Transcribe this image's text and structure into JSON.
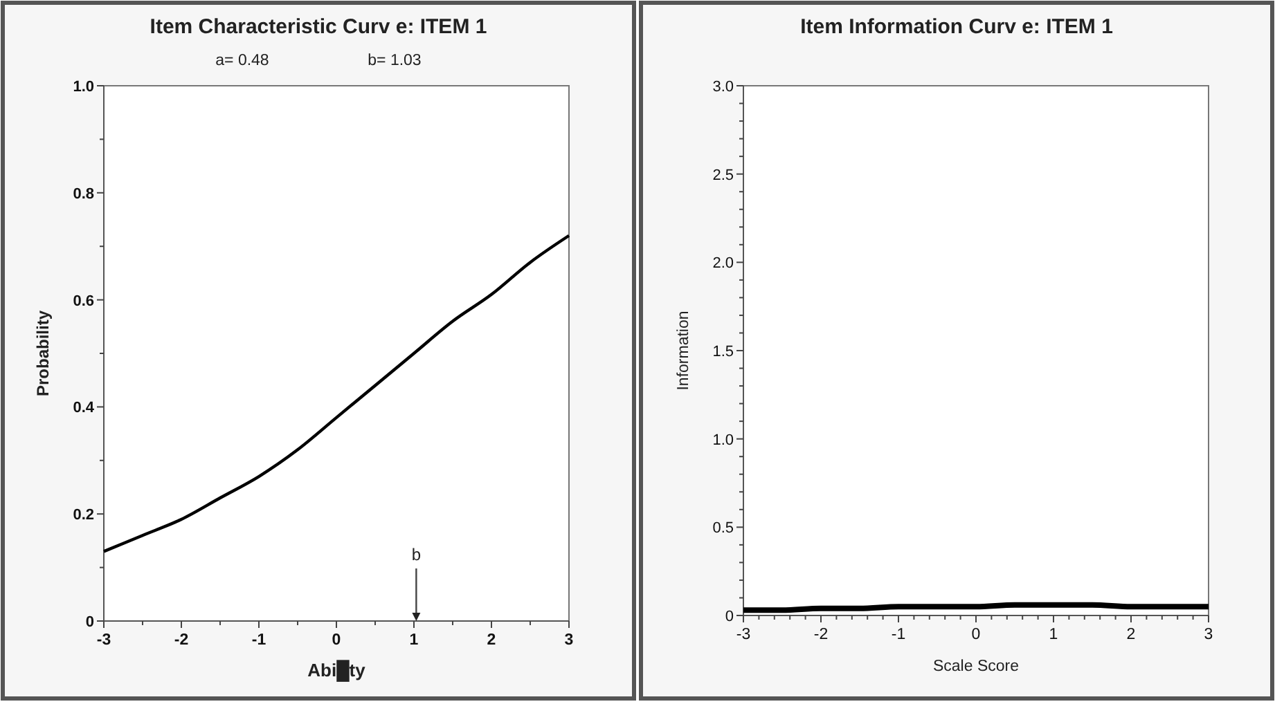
{
  "chart_data": [
    {
      "type": "line",
      "title": "Item Characteristic Curv e: ITEM 1",
      "xlabel": "Abi█ty",
      "ylabel": "Probability",
      "annotations": [
        "a= 0.48",
        "b= 1.03"
      ],
      "ref_lines": [
        {
          "axis": "x",
          "value": 1.03,
          "label": "b"
        }
      ],
      "x": [
        -3,
        -2.5,
        -2,
        -1.5,
        -1,
        -0.5,
        0,
        0.5,
        1,
        1.5,
        2,
        2.5,
        3
      ],
      "series": [
        {
          "color": "#000000",
          "values": [
            0.13,
            0.16,
            0.19,
            0.23,
            0.27,
            0.32,
            0.38,
            0.44,
            0.5,
            0.56,
            0.61,
            0.67,
            0.72
          ]
        }
      ],
      "xlim": [
        -3,
        3
      ],
      "ylim": [
        0,
        1
      ],
      "xticks": [
        -3,
        {
          "value": -2.5,
          "label": null
        },
        -2,
        {
          "value": -1.5,
          "label": null
        },
        -1,
        {
          "value": -0.5,
          "label": null
        },
        0,
        {
          "value": 0.5,
          "label": null
        },
        1,
        {
          "value": 1.5,
          "label": null
        },
        2,
        {
          "value": 2.5,
          "label": null
        },
        3
      ],
      "yticks": [
        0,
        {
          "value": 0.1,
          "label": null
        },
        0.2,
        {
          "value": 0.3,
          "label": null
        },
        0.4,
        {
          "value": 0.5,
          "label": null
        },
        0.6,
        {
          "value": 0.7,
          "label": null
        },
        0.8,
        {
          "value": 0.9,
          "label": null
        },
        {
          "value": 1,
          "label": "1.0"
        }
      ],
      "grid": false,
      "marker": "none",
      "line_style": "solid"
    },
    {
      "type": "line",
      "title": "Item Information Curv e: ITEM 1",
      "xlabel": "Scale Score",
      "ylabel": "Information",
      "x": [
        -3,
        -2.5,
        -2,
        -1.5,
        -1,
        -0.5,
        0,
        0.5,
        1,
        1.5,
        2,
        2.5,
        3
      ],
      "series": [
        {
          "color": "#000000",
          "values": [
            0.03,
            0.03,
            0.04,
            0.04,
            0.05,
            0.05,
            0.05,
            0.06,
            0.06,
            0.06,
            0.05,
            0.05,
            0.05
          ]
        }
      ],
      "xlim": [
        -3,
        3
      ],
      "ylim": [
        0,
        3
      ],
      "xticks": [
        -3,
        {
          "value": -2.8,
          "label": null
        },
        {
          "value": -2.6,
          "label": null
        },
        {
          "value": -2.4,
          "label": null
        },
        {
          "value": -2.2,
          "label": null
        },
        -2,
        {
          "value": -1.8,
          "label": null
        },
        {
          "value": -1.6,
          "label": null
        },
        {
          "value": -1.4,
          "label": null
        },
        {
          "value": -1.2,
          "label": null
        },
        -1,
        {
          "value": -0.8,
          "label": null
        },
        {
          "value": -0.6,
          "label": null
        },
        {
          "value": -0.4,
          "label": null
        },
        {
          "value": -0.2,
          "label": null
        },
        0,
        {
          "value": 0.2,
          "label": null
        },
        {
          "value": 0.4,
          "label": null
        },
        {
          "value": 0.6,
          "label": null
        },
        {
          "value": 0.8,
          "label": null
        },
        1,
        {
          "value": 1.2,
          "label": null
        },
        {
          "value": 1.4,
          "label": null
        },
        {
          "value": 1.6,
          "label": null
        },
        {
          "value": 1.8,
          "label": null
        },
        2,
        {
          "value": 2.2,
          "label": null
        },
        {
          "value": 2.4,
          "label": null
        },
        {
          "value": 2.6,
          "label": null
        },
        {
          "value": 2.8,
          "label": null
        },
        3
      ],
      "yticks": [
        0,
        {
          "value": 0.1,
          "label": null
        },
        {
          "value": 0.2,
          "label": null
        },
        {
          "value": 0.3,
          "label": null
        },
        {
          "value": 0.4,
          "label": null
        },
        0.5,
        {
          "value": 0.6,
          "label": null
        },
        {
          "value": 0.7,
          "label": null
        },
        {
          "value": 0.8,
          "label": null
        },
        {
          "value": 0.9,
          "label": null
        },
        {
          "value": 1,
          "label": "1.0"
        },
        {
          "value": 1.1,
          "label": null
        },
        {
          "value": 1.2,
          "label": null
        },
        {
          "value": 1.3,
          "label": null
        },
        {
          "value": 1.4,
          "label": null
        },
        1.5,
        {
          "value": 1.6,
          "label": null
        },
        {
          "value": 1.7,
          "label": null
        },
        {
          "value": 1.8,
          "label": null
        },
        {
          "value": 1.9,
          "label": null
        },
        {
          "value": 2,
          "label": "2.0"
        },
        {
          "value": 2.1,
          "label": null
        },
        {
          "value": 2.2,
          "label": null
        },
        {
          "value": 2.3,
          "label": null
        },
        {
          "value": 2.4,
          "label": null
        },
        2.5,
        {
          "value": 2.6,
          "label": null
        },
        {
          "value": 2.7,
          "label": null
        },
        {
          "value": 2.8,
          "label": null
        },
        {
          "value": 2.9,
          "label": null
        },
        {
          "value": 3,
          "label": "3.0"
        }
      ],
      "grid": false,
      "marker": "none",
      "line_style": "solid"
    }
  ]
}
